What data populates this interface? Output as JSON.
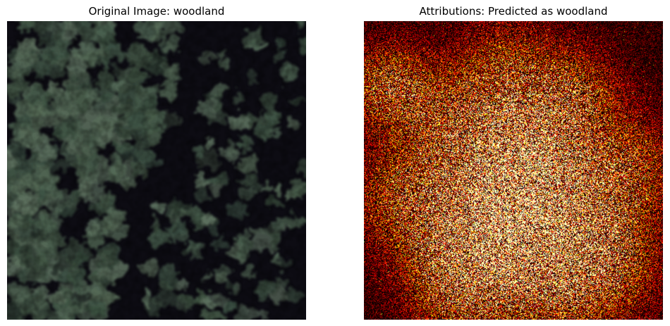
{
  "left_panel": {
    "title": "Original Image: woodland"
  },
  "right_panel": {
    "title": "Attributions: Predicted as woodland"
  },
  "colors": {
    "background": "#ffffff",
    "forest_dark": "#0c0b12",
    "forest_canopy": "#4f6553",
    "heatmap_low": "#000000",
    "heatmap_mid": "#a00000",
    "heatmap_high": "#ffe060"
  }
}
